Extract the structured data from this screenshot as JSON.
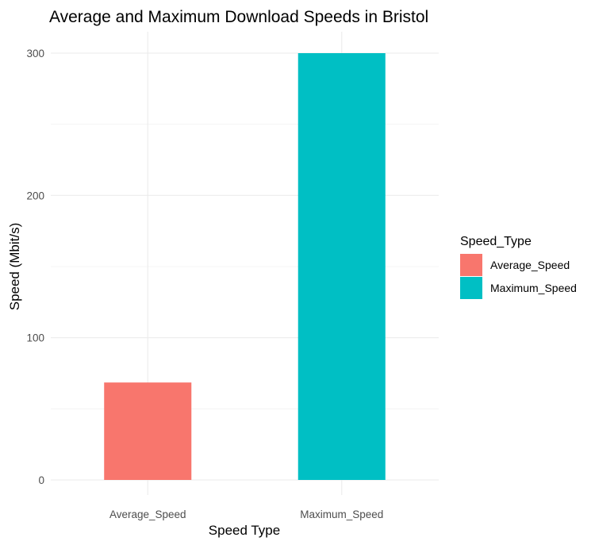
{
  "chart_data": {
    "type": "bar",
    "title": "Average and Maximum Download Speeds in Bristol",
    "xlabel": "Speed Type",
    "ylabel": "Speed (Mbit/s)",
    "categories": [
      "Average_Speed",
      "Maximum_Speed"
    ],
    "values": [
      68.5,
      300
    ],
    "colors": [
      "#F8766D",
      "#00BFC4"
    ],
    "ylim": [
      0,
      300
    ],
    "yticks": [
      0,
      100,
      200,
      300
    ],
    "grid": true,
    "legend": {
      "title": "Speed_Type",
      "position": "right",
      "entries": [
        "Average_Speed",
        "Maximum_Speed"
      ]
    }
  }
}
